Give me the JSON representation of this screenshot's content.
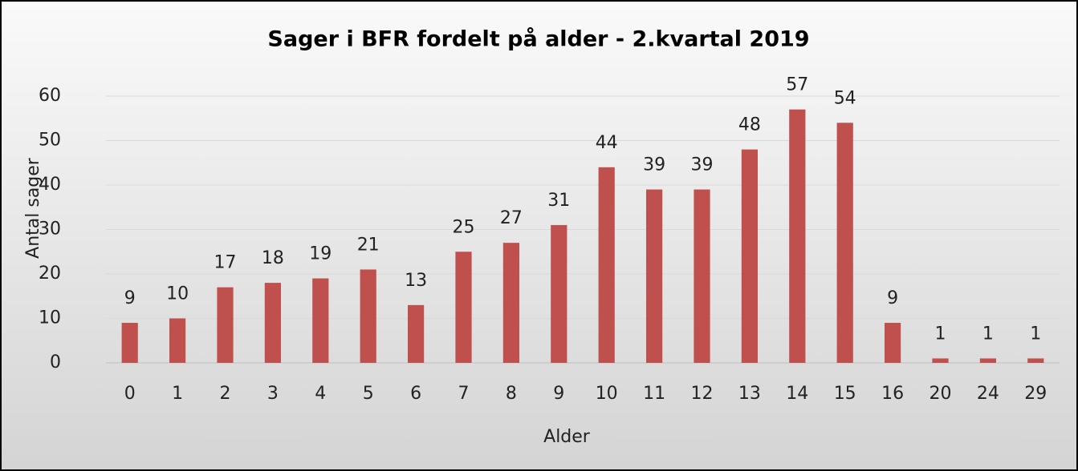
{
  "chart_data": {
    "type": "bar",
    "title": "Sager i BFR fordelt på alder - 2.kvartal 2019",
    "x_label": "Alder",
    "y_label": "Antal sager",
    "categories": [
      "0",
      "1",
      "2",
      "3",
      "4",
      "5",
      "6",
      "7",
      "8",
      "9",
      "10",
      "11",
      "12",
      "13",
      "14",
      "15",
      "16",
      "20",
      "24",
      "29"
    ],
    "values": [
      9,
      10,
      17,
      18,
      19,
      21,
      13,
      25,
      27,
      31,
      44,
      39,
      39,
      48,
      57,
      54,
      9,
      1,
      1,
      1
    ],
    "color": "#c0504d",
    "ylim": [
      0,
      60
    ],
    "yticks": [
      0,
      10,
      20,
      30,
      40,
      50,
      60
    ],
    "grid": true
  }
}
